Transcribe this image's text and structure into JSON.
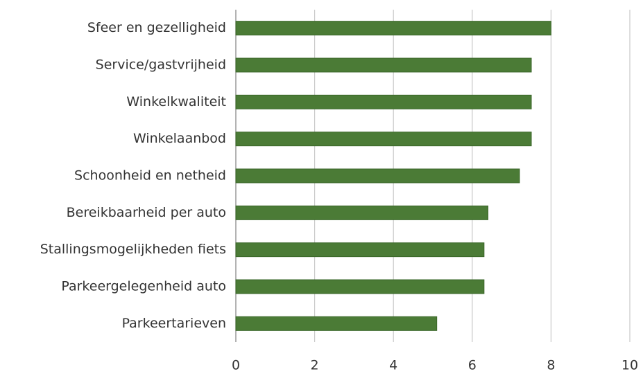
{
  "chart_data": {
    "type": "bar",
    "orientation": "horizontal",
    "categories": [
      "Sfeer en gezelligheid",
      "Service/gastvrijheid",
      "Winkelkwaliteit",
      "Winkelaanbod",
      "Schoonheid en netheid",
      "Bereikbaarheid per auto",
      "Stallingsmogelijkheden fiets",
      "Parkeergelegenheid auto",
      "Parkeertarieven"
    ],
    "values": [
      8.0,
      7.5,
      7.5,
      7.5,
      7.2,
      6.4,
      6.3,
      6.3,
      5.1
    ],
    "color": "#4b7b36",
    "xlim": [
      0,
      10
    ],
    "xticks": [
      0,
      2,
      4,
      6,
      8,
      10
    ],
    "grid": true
  }
}
